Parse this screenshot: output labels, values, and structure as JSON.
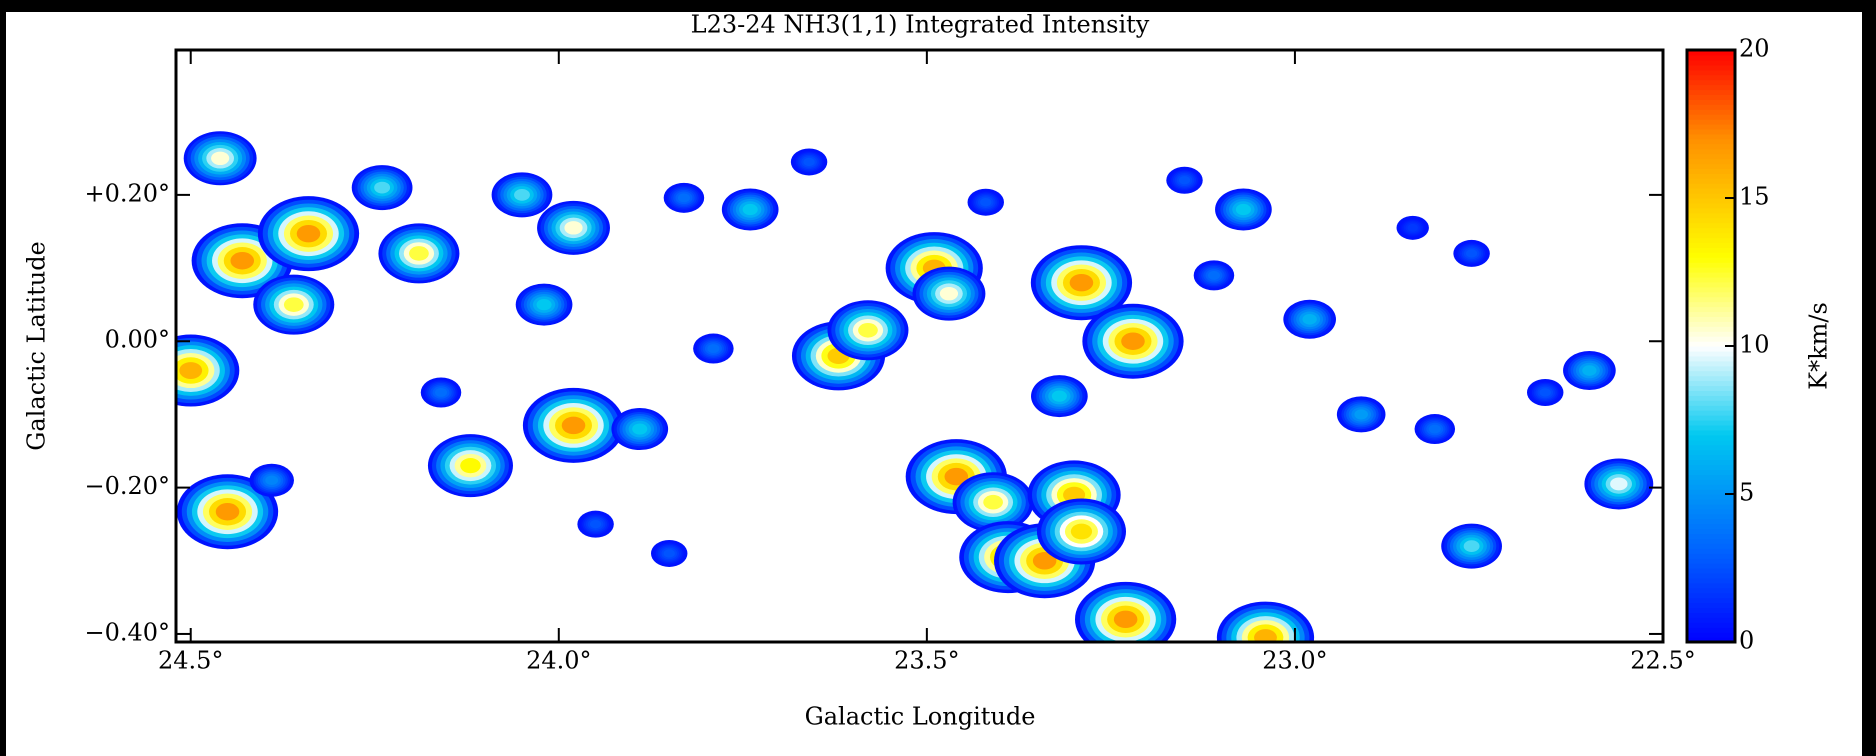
{
  "chart_data": {
    "type": "map",
    "title": "L23-24 NH3(1,1) Integrated Intensity",
    "xlabel": "Galactic Longitude",
    "ylabel": "Galactic Latitude",
    "colorbar_label": "K*km/s",
    "xlim": [
      24.52,
      22.5
    ],
    "ylim": [
      -0.411,
      0.398
    ],
    "xticks": [
      {
        "value": 24.5,
        "label": "24.5°"
      },
      {
        "value": 24.0,
        "label": "24.0°"
      },
      {
        "value": 23.5,
        "label": "23.5°"
      },
      {
        "value": 23.0,
        "label": "23.0°"
      },
      {
        "value": 22.5,
        "label": "22.5°"
      }
    ],
    "yticks": [
      {
        "value": 0.2,
        "label": "+0.20°"
      },
      {
        "value": 0.0,
        "label": "0.00°"
      },
      {
        "value": -0.2,
        "label": "−0.20°"
      },
      {
        "value": -0.4,
        "label": "−0.40°"
      }
    ],
    "clim": [
      0,
      20
    ],
    "cticks": [
      0,
      5,
      10,
      15,
      20
    ],
    "colormap": [
      {
        "value": 0,
        "color": "#0000ff"
      },
      {
        "value": 3,
        "color": "#0060ff"
      },
      {
        "value": 7,
        "color": "#00c8f0"
      },
      {
        "value": 10,
        "color": "#ffffff"
      },
      {
        "value": 13,
        "color": "#ffff00"
      },
      {
        "value": 17,
        "color": "#ff9000"
      },
      {
        "value": 20,
        "color": "#ff0000"
      }
    ],
    "x": [
      24.45,
      24.5,
      24.43,
      24.34,
      24.36,
      24.46,
      24.24,
      24.19,
      24.12,
      24.05,
      23.98,
      23.98,
      24.02,
      23.89,
      23.62,
      23.58,
      23.49,
      23.47,
      23.46,
      23.41,
      23.39,
      23.34,
      23.3,
      23.29,
      23.29,
      23.22,
      23.23,
      23.04,
      23.07,
      22.98,
      22.76,
      22.56,
      23.74,
      22.6,
      23.32,
      22.91,
      23.83,
      23.66,
      23.42,
      23.15,
      22.76,
      22.66,
      23.79,
      24.16,
      24.39,
      23.85,
      23.11,
      22.81,
      23.95,
      22.84
    ],
    "y": [
      -0.233,
      -0.04,
      0.11,
      0.147,
      0.05,
      0.25,
      0.21,
      0.12,
      -0.17,
      0.2,
      0.155,
      -0.115,
      0.05,
      -0.12,
      -0.02,
      0.015,
      0.1,
      0.065,
      -0.185,
      -0.22,
      -0.295,
      -0.3,
      -0.21,
      -0.26,
      0.08,
      0.0,
      -0.38,
      -0.405,
      0.18,
      0.03,
      -0.28,
      -0.195,
      0.18,
      -0.04,
      -0.075,
      -0.1,
      0.196,
      0.245,
      0.19,
      0.22,
      0.12,
      -0.07,
      -0.01,
      -0.07,
      -0.19,
      -0.29,
      0.09,
      -0.12,
      -0.25,
      0.155
    ],
    "values": [
      19,
      18,
      19,
      19,
      14,
      12,
      9,
      14,
      15,
      9,
      12,
      19,
      8,
      8,
      17,
      14,
      18,
      12,
      19,
      14,
      18,
      19,
      17,
      16,
      19,
      19,
      19,
      18,
      8,
      7,
      9,
      11,
      8,
      7,
      8,
      6,
      4,
      3,
      3,
      3,
      3,
      3,
      4,
      4,
      5,
      3,
      4,
      4,
      3,
      2
    ]
  }
}
